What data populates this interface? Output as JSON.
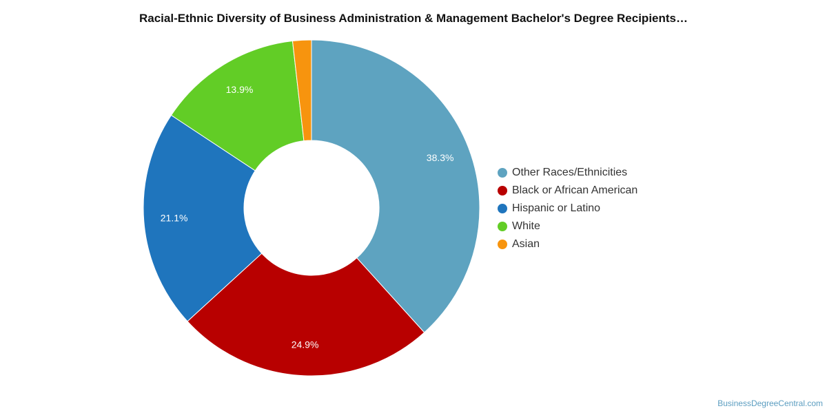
{
  "chart_data": {
    "type": "pie",
    "variant": "donut",
    "title": "Racial-Ethnic Diversity of Business Administration & Management Bachelor's Degree Recipients…",
    "slices": [
      {
        "label": "Other Races/Ethnicities",
        "value": 38.3,
        "value_label": "38.3%",
        "color": "#5ea3c0"
      },
      {
        "label": "Black or African American",
        "value": 24.9,
        "value_label": "24.9%",
        "color": "#b80000"
      },
      {
        "label": "Hispanic or Latino",
        "value": 21.1,
        "value_label": "21.1%",
        "color": "#1f75bd"
      },
      {
        "label": "White",
        "value": 13.9,
        "value_label": "13.9%",
        "color": "#62cd26"
      },
      {
        "label": "Asian",
        "value": 1.8,
        "value_label": "",
        "color": "#f7940e"
      }
    ],
    "legend_position": "right"
  },
  "footer": {
    "source": "BusinessDegreeCentral.com"
  }
}
